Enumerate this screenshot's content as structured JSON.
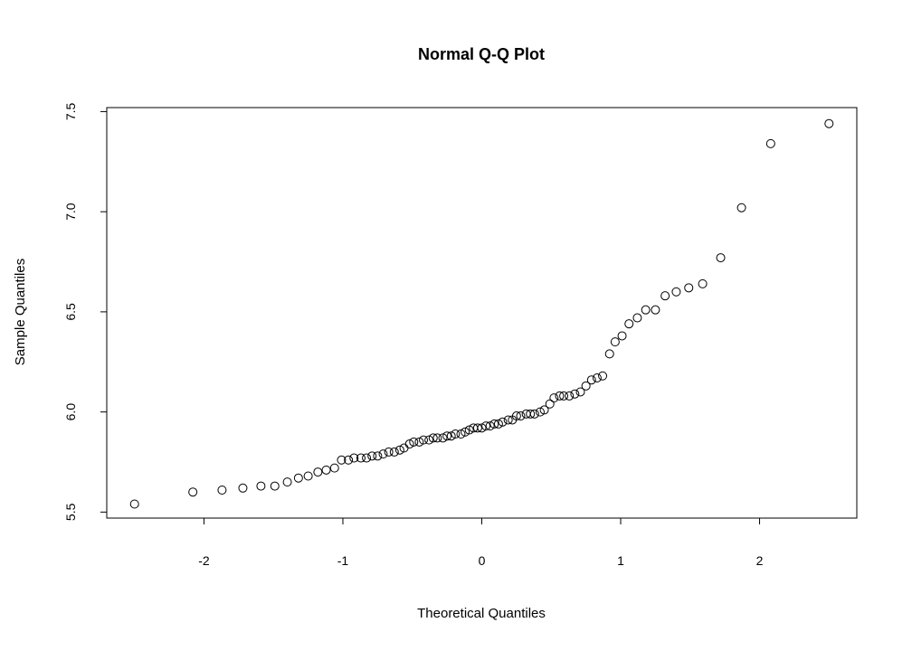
{
  "chart_data": {
    "type": "scatter",
    "title": "Normal Q-Q Plot",
    "xlabel": "Theoretical Quantiles",
    "ylabel": "Sample Quantiles",
    "xlim": [
      -2.7,
      2.7
    ],
    "ylim": [
      5.47,
      7.52
    ],
    "xticks": [
      -2,
      -1,
      0,
      1,
      2
    ],
    "xtick_labels": [
      "-2",
      "-1",
      "0",
      "1",
      "2"
    ],
    "yticks": [
      5.5,
      6.0,
      6.5,
      7.0,
      7.5
    ],
    "ytick_labels": [
      "5.5",
      "6.0",
      "6.5",
      "7.0",
      "7.5"
    ],
    "grid": false,
    "legend": "none",
    "marker": "open-circle",
    "points": [
      [
        -2.5,
        5.54
      ],
      [
        -2.08,
        5.6
      ],
      [
        -1.87,
        5.61
      ],
      [
        -1.72,
        5.62
      ],
      [
        -1.59,
        5.63
      ],
      [
        -1.49,
        5.63
      ],
      [
        -1.4,
        5.65
      ],
      [
        -1.32,
        5.67
      ],
      [
        -1.25,
        5.68
      ],
      [
        -1.18,
        5.7
      ],
      [
        -1.12,
        5.71
      ],
      [
        -1.06,
        5.72
      ],
      [
        -1.01,
        5.76
      ],
      [
        -0.96,
        5.76
      ],
      [
        -0.92,
        5.77
      ],
      [
        -0.87,
        5.77
      ],
      [
        -0.83,
        5.77
      ],
      [
        -0.79,
        5.78
      ],
      [
        -0.75,
        5.78
      ],
      [
        -0.71,
        5.79
      ],
      [
        -0.67,
        5.8
      ],
      [
        -0.63,
        5.8
      ],
      [
        -0.59,
        5.81
      ],
      [
        -0.56,
        5.82
      ],
      [
        -0.52,
        5.84
      ],
      [
        -0.49,
        5.85
      ],
      [
        -0.45,
        5.85
      ],
      [
        -0.42,
        5.86
      ],
      [
        -0.38,
        5.86
      ],
      [
        -0.35,
        5.87
      ],
      [
        -0.32,
        5.87
      ],
      [
        -0.28,
        5.87
      ],
      [
        -0.25,
        5.88
      ],
      [
        -0.22,
        5.88
      ],
      [
        -0.19,
        5.89
      ],
      [
        -0.15,
        5.89
      ],
      [
        -0.12,
        5.9
      ],
      [
        -0.09,
        5.91
      ],
      [
        -0.06,
        5.92
      ],
      [
        -0.03,
        5.92
      ],
      [
        0.0,
        5.92
      ],
      [
        0.03,
        5.93
      ],
      [
        0.06,
        5.93
      ],
      [
        0.09,
        5.94
      ],
      [
        0.12,
        5.94
      ],
      [
        0.15,
        5.95
      ],
      [
        0.19,
        5.96
      ],
      [
        0.22,
        5.96
      ],
      [
        0.25,
        5.98
      ],
      [
        0.28,
        5.98
      ],
      [
        0.32,
        5.99
      ],
      [
        0.35,
        5.99
      ],
      [
        0.38,
        5.99
      ],
      [
        0.42,
        6.0
      ],
      [
        0.45,
        6.01
      ],
      [
        0.49,
        6.04
      ],
      [
        0.52,
        6.07
      ],
      [
        0.56,
        6.08
      ],
      [
        0.59,
        6.08
      ],
      [
        0.63,
        6.08
      ],
      [
        0.67,
        6.09
      ],
      [
        0.71,
        6.1
      ],
      [
        0.75,
        6.13
      ],
      [
        0.79,
        6.16
      ],
      [
        0.83,
        6.17
      ],
      [
        0.87,
        6.18
      ],
      [
        0.92,
        6.29
      ],
      [
        0.96,
        6.35
      ],
      [
        1.01,
        6.38
      ],
      [
        1.06,
        6.44
      ],
      [
        1.12,
        6.47
      ],
      [
        1.18,
        6.51
      ],
      [
        1.25,
        6.51
      ],
      [
        1.32,
        6.58
      ],
      [
        1.4,
        6.6
      ],
      [
        1.49,
        6.62
      ],
      [
        1.59,
        6.64
      ],
      [
        1.72,
        6.77
      ],
      [
        1.87,
        7.02
      ],
      [
        2.08,
        7.34
      ],
      [
        2.5,
        7.44
      ]
    ]
  }
}
